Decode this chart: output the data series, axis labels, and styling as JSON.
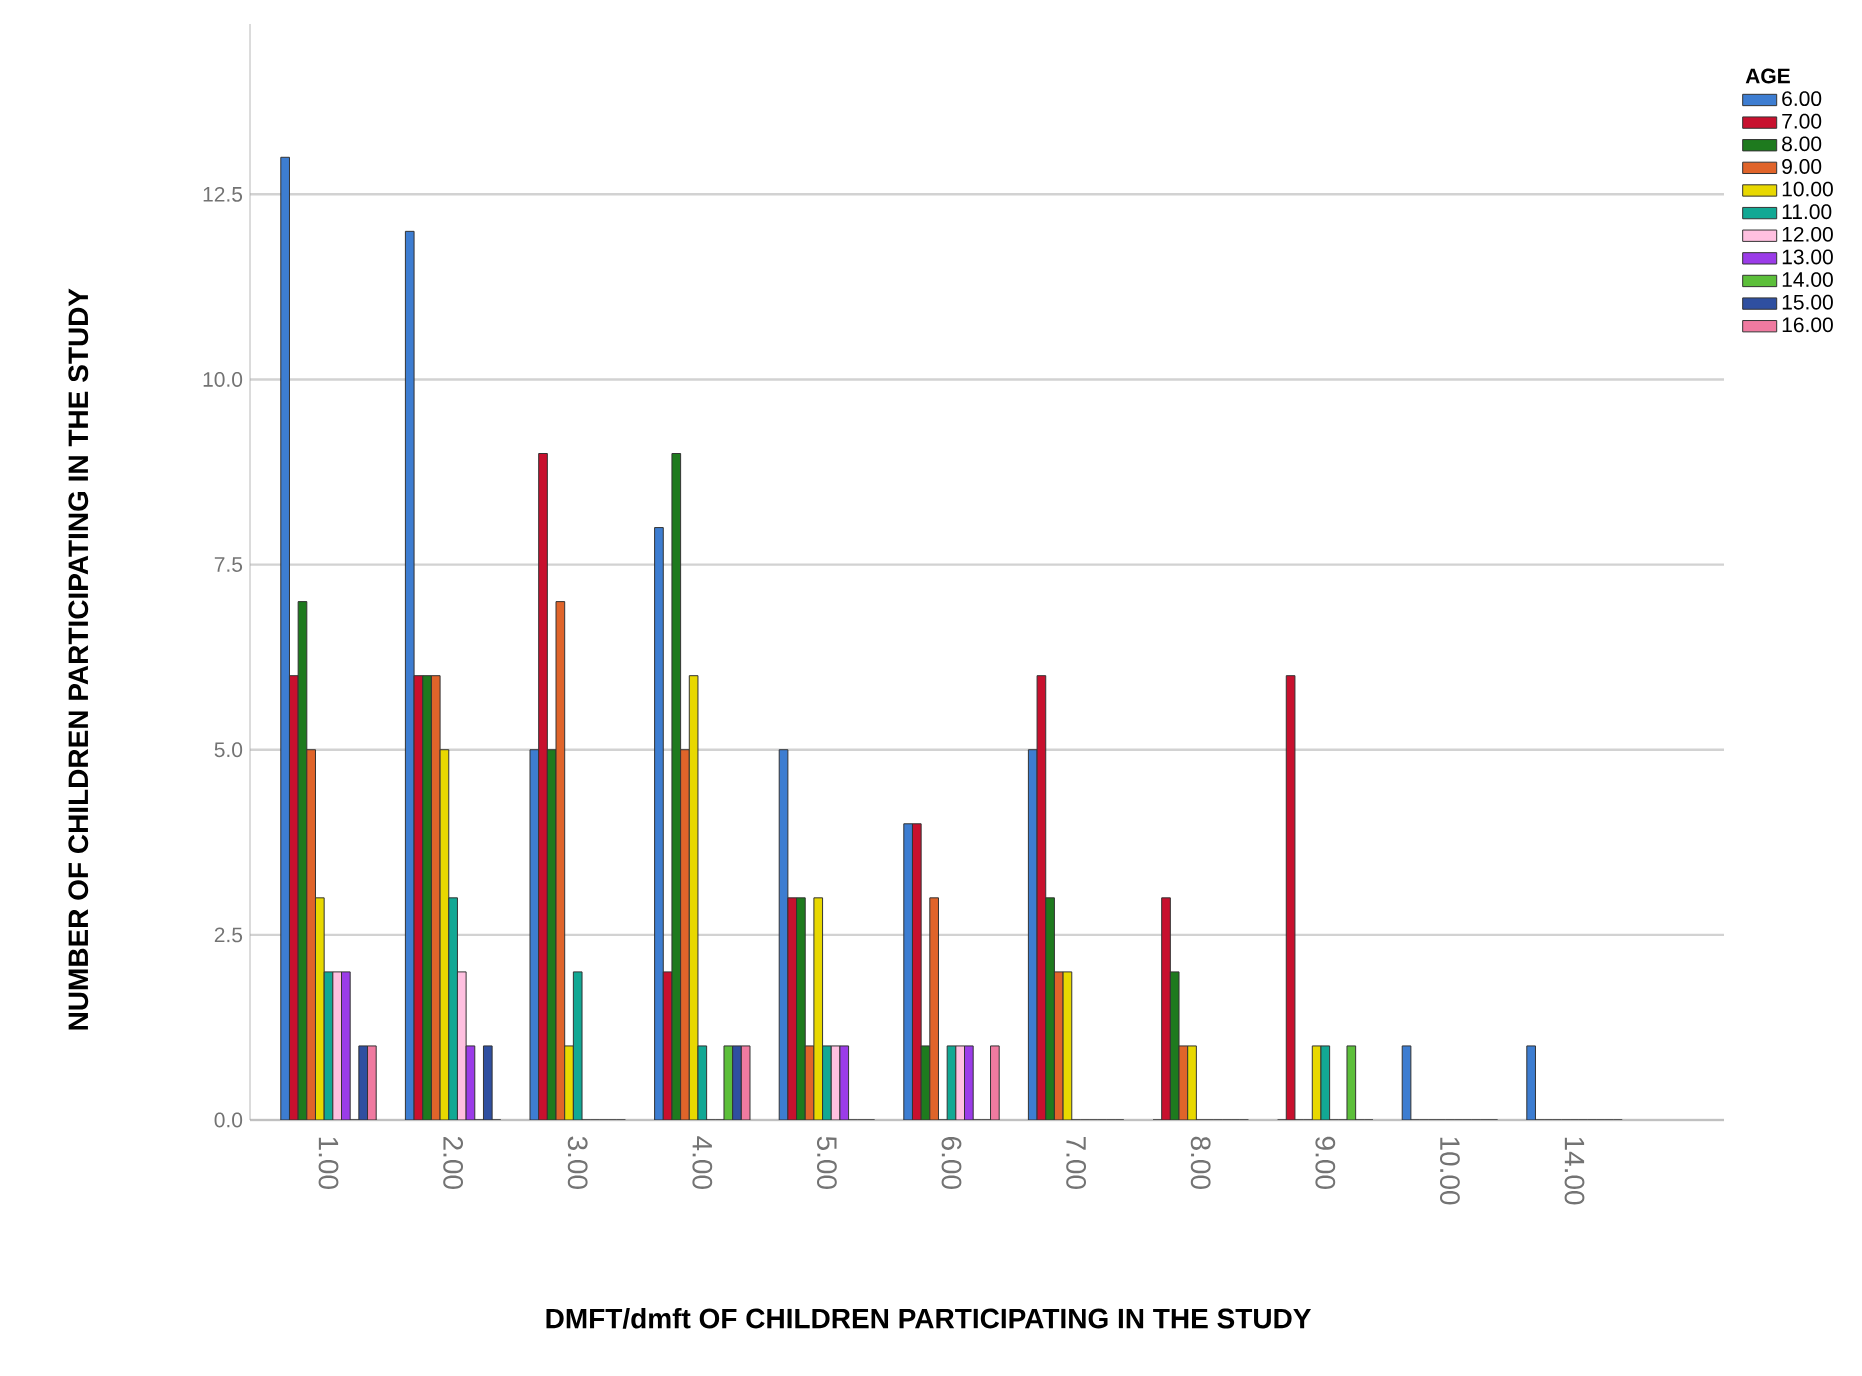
{
  "chart_data": {
    "type": "bar",
    "xlabel": "DMFT/dmft OF CHILDREN PARTICIPATING IN THE STUDY",
    "ylabel": "NUMBER OF CHILDREN PARTICIPATING IN THE STUDY",
    "legend_title": "AGE",
    "categories": [
      "1.00",
      "2.00",
      "3.00",
      "4.00",
      "5.00",
      "6.00",
      "7.00",
      "8.00",
      "9.00",
      "10.00",
      "14.00"
    ],
    "series": [
      {
        "name": "6.00",
        "color": "#3d7dd1",
        "values": [
          13,
          12,
          5,
          8,
          5,
          4,
          5,
          0,
          0,
          1,
          1
        ]
      },
      {
        "name": "7.00",
        "color": "#c8102e",
        "values": [
          6,
          6,
          9,
          2,
          3,
          4,
          6,
          3,
          6,
          0,
          0
        ]
      },
      {
        "name": "8.00",
        "color": "#1e7a1e",
        "values": [
          7,
          6,
          5,
          9,
          3,
          1,
          3,
          2,
          0,
          0,
          0
        ]
      },
      {
        "name": "9.00",
        "color": "#e0642a",
        "values": [
          5,
          6,
          7,
          5,
          1,
          3,
          2,
          1,
          0,
          0,
          0
        ]
      },
      {
        "name": "10.00",
        "color": "#e8d800",
        "values": [
          3,
          5,
          1,
          6,
          3,
          0,
          2,
          1,
          1,
          0,
          0
        ]
      },
      {
        "name": "11.00",
        "color": "#12a894",
        "values": [
          2,
          3,
          2,
          1,
          1,
          1,
          0,
          0,
          1,
          0,
          0
        ]
      },
      {
        "name": "12.00",
        "color": "#ffc0e0",
        "values": [
          2,
          2,
          0,
          0,
          1,
          1,
          0,
          0,
          0,
          0,
          0
        ]
      },
      {
        "name": "13.00",
        "color": "#9b3ce8",
        "values": [
          2,
          1,
          0,
          0,
          1,
          1,
          0,
          0,
          0,
          0,
          0
        ]
      },
      {
        "name": "14.00",
        "color": "#5cbf3a",
        "values": [
          0,
          0,
          0,
          1,
          0,
          0,
          0,
          0,
          1,
          0,
          0
        ]
      },
      {
        "name": "15.00",
        "color": "#2f4fa0",
        "values": [
          1,
          1,
          0,
          1,
          0,
          0,
          0,
          0,
          0,
          0,
          0
        ]
      },
      {
        "name": "16.00",
        "color": "#f07aa0",
        "values": [
          1,
          0,
          0,
          1,
          0,
          1,
          0,
          0,
          0,
          0,
          0
        ]
      }
    ],
    "ylim": [
      0,
      14.8
    ],
    "yticks": [
      {
        "value": 0,
        "label": "0.0"
      },
      {
        "value": 2.5,
        "label": "2.5"
      },
      {
        "value": 5,
        "label": "5.0"
      },
      {
        "value": 7.5,
        "label": "7.5"
      },
      {
        "value": 10,
        "label": "10.0"
      },
      {
        "value": 12.5,
        "label": "12.5"
      }
    ],
    "grid": "y",
    "legend": "top right"
  }
}
